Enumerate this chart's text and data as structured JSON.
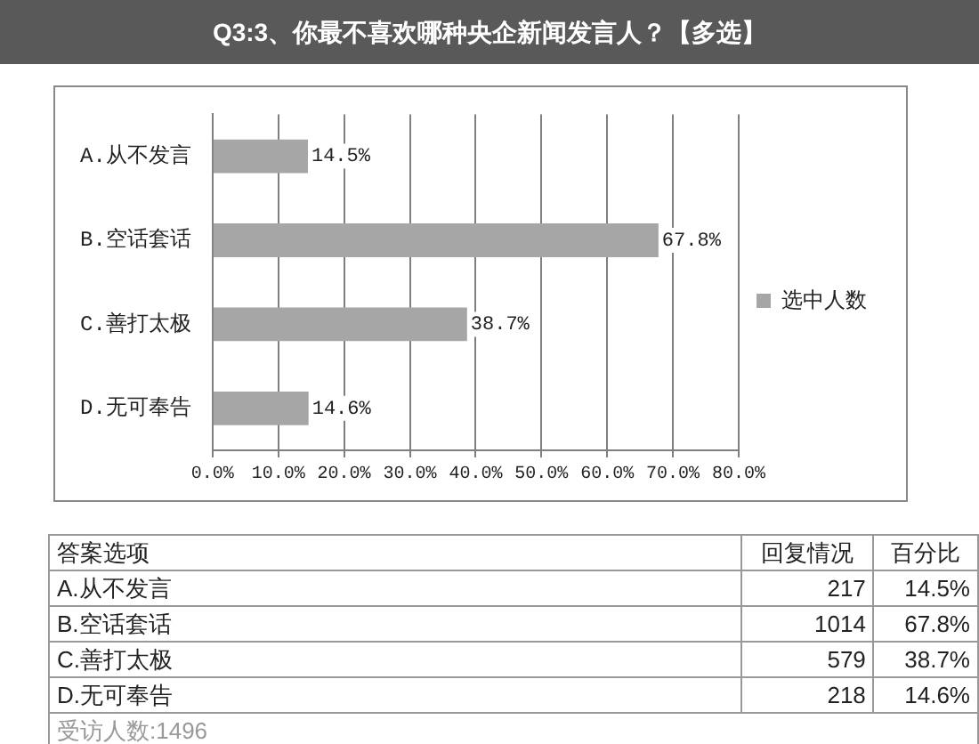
{
  "chart_data": [
    {
      "type": "bar",
      "title": "Q3:3、你最不喜欢哪种央企新闻发言人？【多选】",
      "orientation": "horizontal",
      "categories": [
        "A.从不发言",
        "B.空话套话",
        "C.善打太极",
        "D.无可奉告"
      ],
      "series": [
        {
          "name": "选中人数",
          "color": "#a6a6a6",
          "values": [
            14.5,
            67.8,
            38.7,
            14.6
          ],
          "value_labels": [
            "14.5%",
            "67.8%",
            "38.7%",
            "14.6%"
          ]
        }
      ],
      "xlim": [
        0,
        80
      ],
      "xticks": [
        {
          "value": 0,
          "label": "0.0%"
        },
        {
          "value": 10,
          "label": "10.0%"
        },
        {
          "value": 20,
          "label": "20.0%"
        },
        {
          "value": 30,
          "label": "30.0%"
        },
        {
          "value": 40,
          "label": "40.0%"
        },
        {
          "value": 50,
          "label": "50.0%"
        },
        {
          "value": 60,
          "label": "60.0%"
        },
        {
          "value": 70,
          "label": "70.0%"
        },
        {
          "value": 80,
          "label": "80.0%"
        }
      ],
      "grid": "x",
      "legend": "right"
    },
    {
      "type": "other",
      "xlabel": "答案选项",
      "categories": [
        "A.从不发言",
        "B.空话套话",
        "C.善打太极",
        "D.无可奉告"
      ],
      "data_labels": true,
      "series": [
        {
          "name": "回复情况",
          "values": [
            217,
            1014,
            579,
            218
          ]
        },
        {
          "name": "百分比",
          "values": [
            14.5,
            67.8,
            38.7,
            14.6
          ],
          "value_labels": [
            "14.5%",
            "67.8%",
            "38.7%",
            "14.6%"
          ]
        }
      ],
      "annotations": [
        "受访人数:1496"
      ]
    }
  ]
}
